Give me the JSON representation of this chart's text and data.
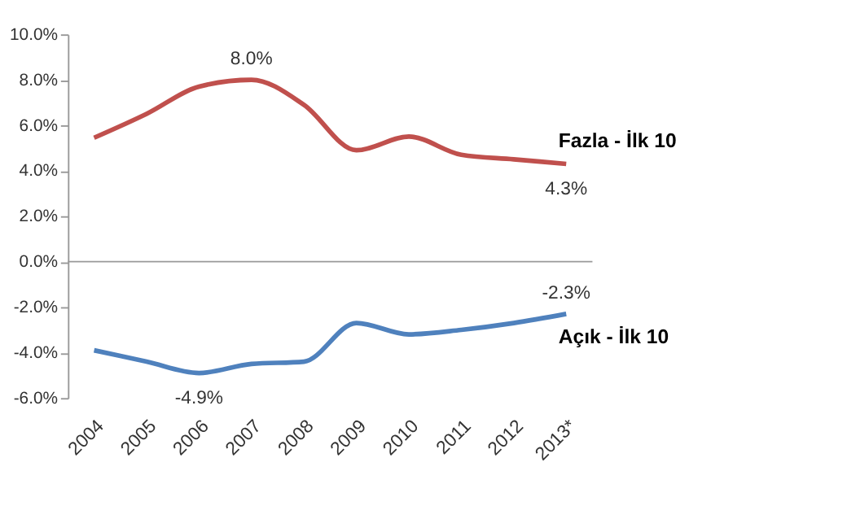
{
  "chart_data": {
    "type": "line",
    "categories": [
      "2004",
      "2005",
      "2006",
      "2007",
      "2008",
      "2009",
      "2010",
      "2011",
      "2012",
      "2013*"
    ],
    "series": [
      {
        "name": "Fazla - İlk 10",
        "color": "#c0504d",
        "values": [
          5.45,
          6.5,
          7.7,
          8.0,
          6.9,
          4.9,
          5.5,
          4.7,
          4.5,
          4.3
        ],
        "value_labels": [
          null,
          null,
          null,
          "8.0%",
          null,
          null,
          null,
          null,
          null,
          "4.3%"
        ]
      },
      {
        "name": "Açık - İlk 10",
        "color": "#4f81bd",
        "values": [
          -3.9,
          -4.4,
          -4.9,
          -4.5,
          -4.4,
          -2.7,
          -3.2,
          -3.0,
          -2.7,
          -2.3
        ],
        "value_labels": [
          null,
          null,
          "-4.9%",
          null,
          null,
          null,
          null,
          null,
          null,
          "-2.3%"
        ]
      }
    ],
    "ylim": [
      -6,
      10
    ],
    "yticks": [
      {
        "value": -6,
        "label": "-6.0%"
      },
      {
        "value": -4,
        "label": "-4.0%"
      },
      {
        "value": -2,
        "label": "-2.0%"
      },
      {
        "value": 0,
        "label": "0.0%"
      },
      {
        "value": 2,
        "label": "2.0%"
      },
      {
        "value": 4,
        "label": "4.0%"
      },
      {
        "value": 6,
        "label": "6.0%"
      },
      {
        "value": 8,
        "label": "8.0%"
      },
      {
        "value": 10,
        "label": "10.0%"
      }
    ],
    "ref_lines": [
      {
        "axis": "y",
        "value": 0,
        "color": "#999999",
        "line_style": "solid"
      }
    ],
    "grid": false,
    "legend": false,
    "marker": "none",
    "line_style": "solid"
  }
}
